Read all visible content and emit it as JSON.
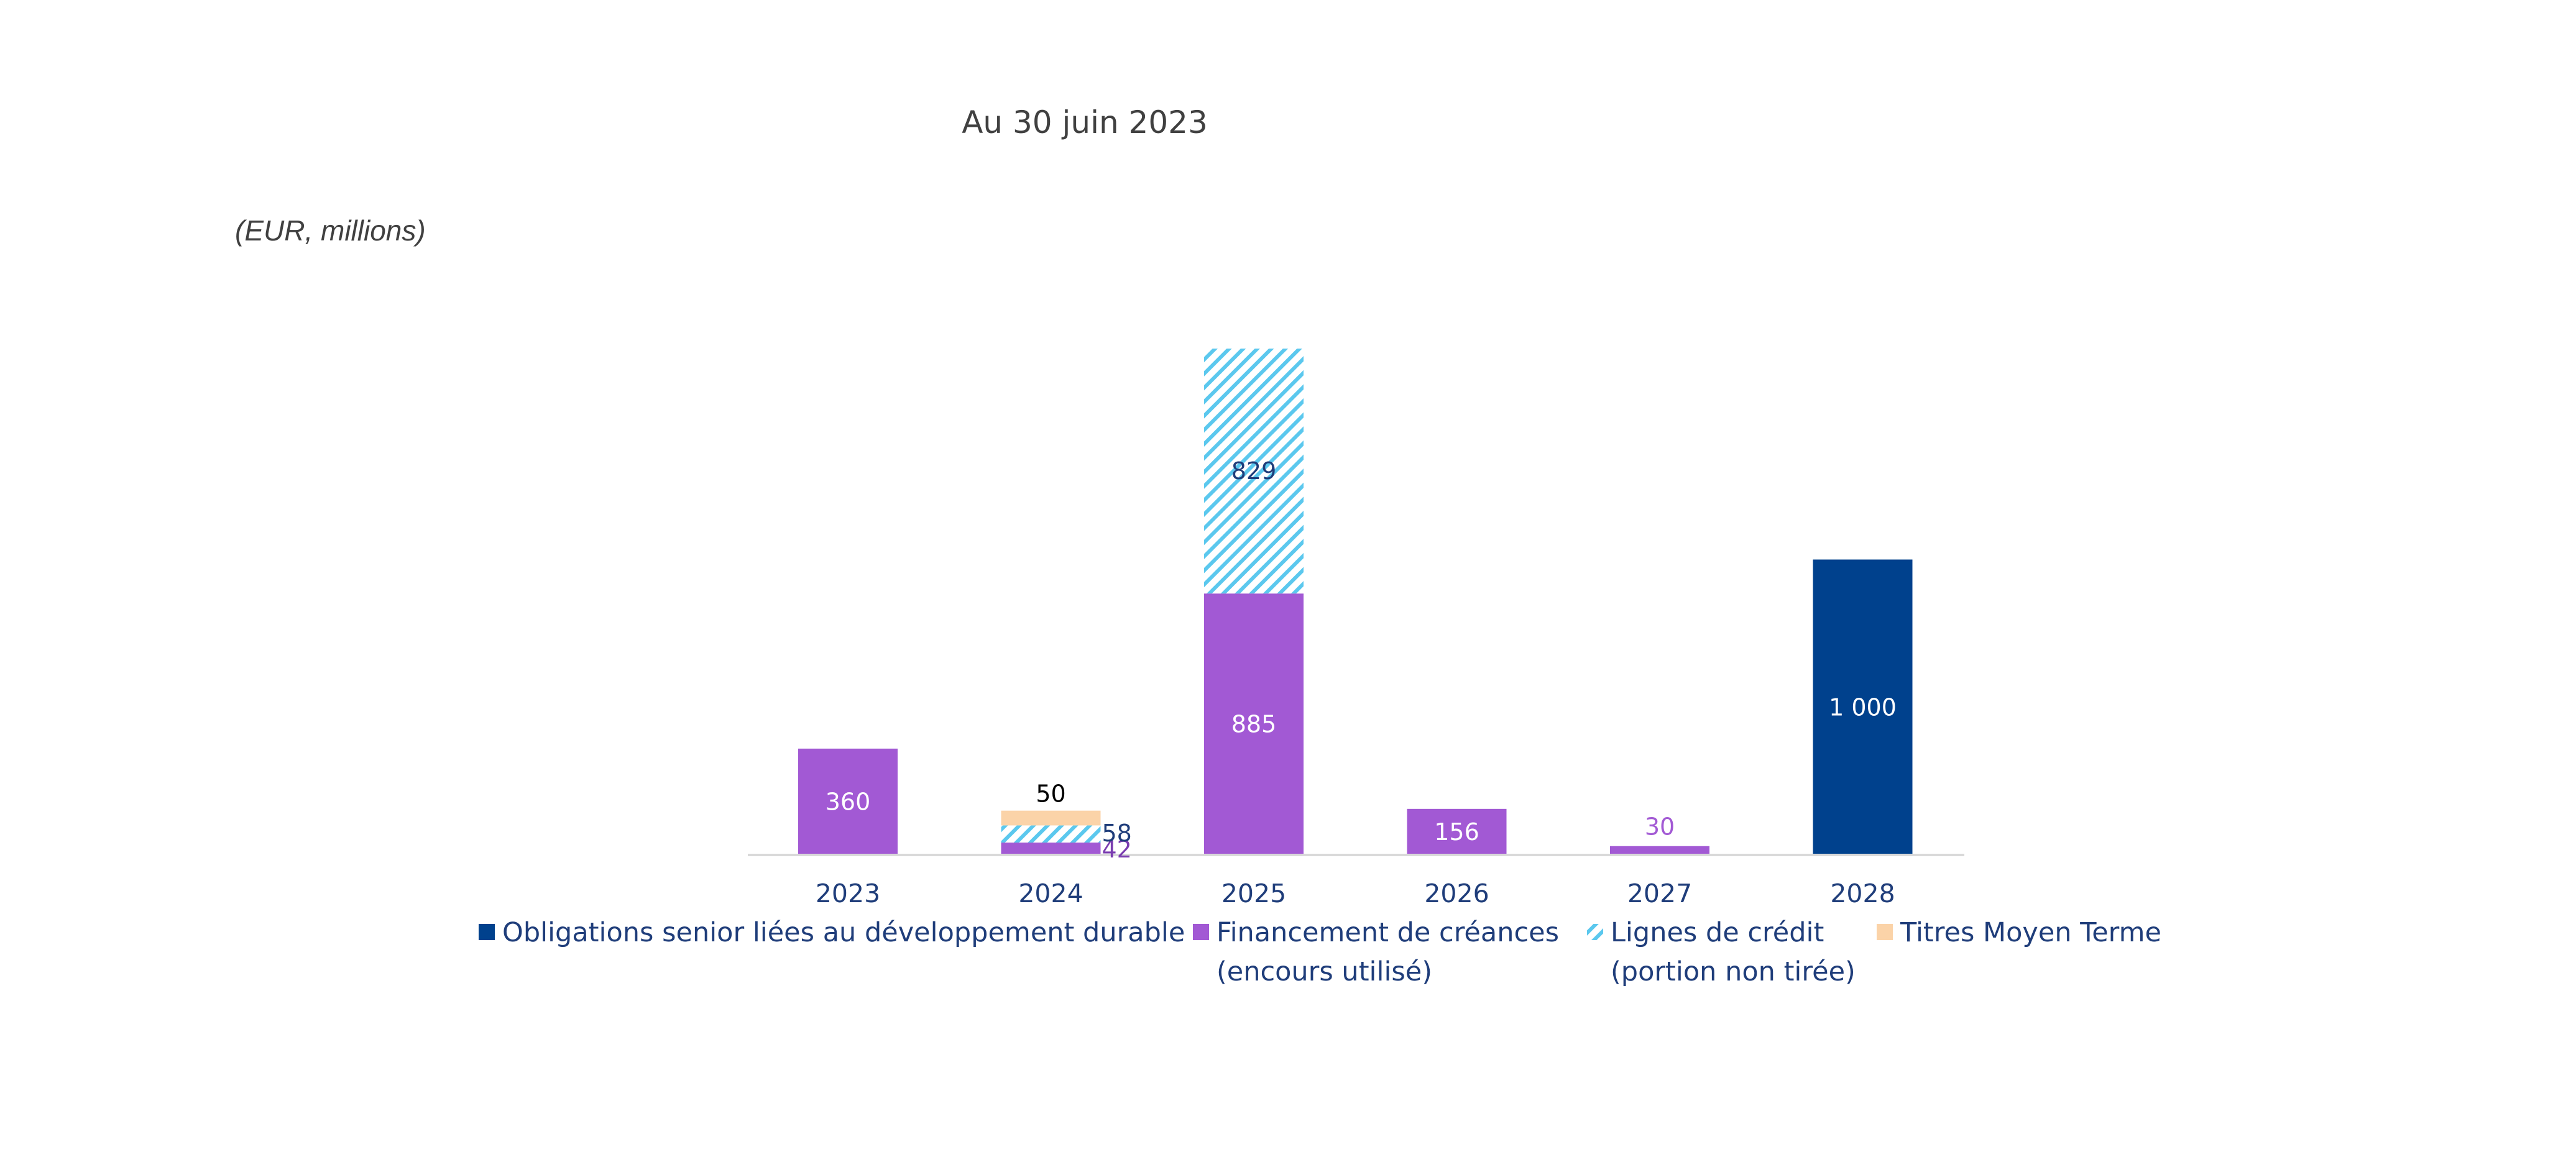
{
  "chart_data": {
    "type": "bar",
    "stacked": true,
    "title": "Au 30 juin 2023",
    "unit_label": "(EUR, millions)",
    "xlabel": "",
    "ylabel": "",
    "ylim": [
      0,
      1800
    ],
    "grid": false,
    "legend_position": "bottom",
    "categories": [
      "2023",
      "2024",
      "2025",
      "2026",
      "2027",
      "2028"
    ],
    "series": [
      {
        "key": "obligations",
        "name": "Obligations senior liées au développement durable",
        "legend_lines": [
          "Obligations senior liées au développement durable"
        ],
        "values": [
          0,
          0,
          0,
          0,
          0,
          1000
        ],
        "labels": [
          "",
          "",
          "",
          "",
          "",
          "1 000"
        ],
        "color": "#00418D",
        "pattern": "solid"
      },
      {
        "key": "financement",
        "name": "Financement de créances (encours utilisé)",
        "legend_lines": [
          "Financement de créances",
          "(encours utilisé)"
        ],
        "values": [
          360,
          42,
          885,
          156,
          30,
          0
        ],
        "labels": [
          "360",
          "42",
          "885",
          "156",
          "30",
          ""
        ],
        "color": "#A259D4",
        "pattern": "solid"
      },
      {
        "key": "lignes",
        "name": "Lignes de crédit (portion non tirée)",
        "legend_lines": [
          "Lignes de crédit",
          "(portion non tirée)"
        ],
        "values": [
          0,
          58,
          829,
          0,
          0,
          0
        ],
        "labels": [
          "",
          "58",
          "829",
          "",
          "",
          ""
        ],
        "color": "#5BC8EE",
        "pattern": "hatch"
      },
      {
        "key": "titres",
        "name": "Titres Moyen Terme",
        "legend_lines": [
          "Titres Moyen Terme"
        ],
        "values": [
          0,
          50,
          0,
          0,
          0,
          0
        ],
        "labels": [
          "",
          "50",
          "",
          "",
          "",
          ""
        ],
        "color": "#FBD3A8",
        "pattern": "solid"
      }
    ]
  }
}
